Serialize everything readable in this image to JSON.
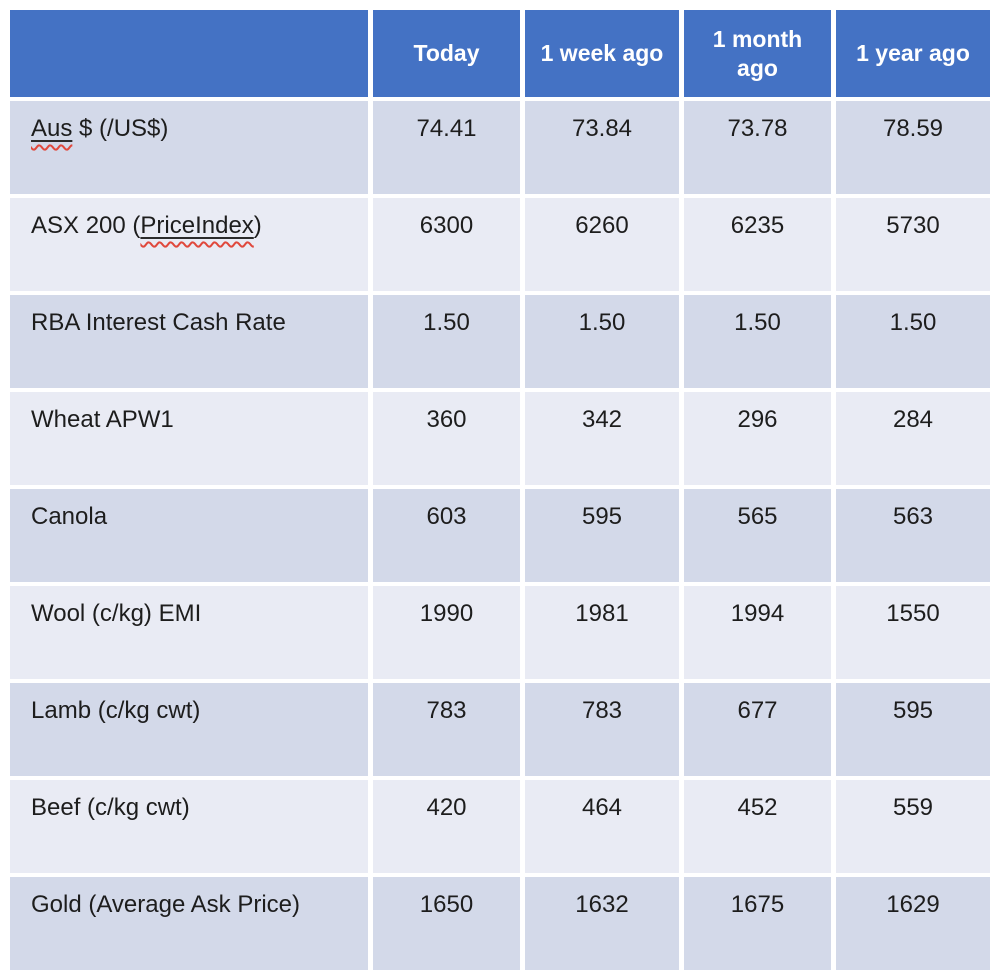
{
  "table": {
    "header": {
      "corner": "",
      "cols": [
        "Today",
        "1 week ago",
        "1 month ago",
        "1 year ago"
      ]
    },
    "rows": [
      {
        "label_parts": [
          {
            "text": "Aus",
            "misspelled": true
          },
          {
            "text": " $ (/US$)"
          }
        ],
        "values": [
          "74.41",
          "73.84",
          "73.78",
          "78.59"
        ]
      },
      {
        "label_parts": [
          {
            "text": "ASX 200 ("
          },
          {
            "text": "PriceIndex",
            "misspelled": true
          },
          {
            "text": ")"
          }
        ],
        "values": [
          "6300",
          "6260",
          "6235",
          "5730"
        ]
      },
      {
        "label_parts": [
          {
            "text": "RBA Interest Cash Rate"
          }
        ],
        "values": [
          "1.50",
          "1.50",
          "1.50",
          "1.50"
        ]
      },
      {
        "label_parts": [
          {
            "text": "Wheat APW1"
          }
        ],
        "values": [
          "360",
          "342",
          "296",
          "284"
        ]
      },
      {
        "label_parts": [
          {
            "text": "Canola"
          }
        ],
        "values": [
          "603",
          "595",
          "565",
          "563"
        ]
      },
      {
        "label_parts": [
          {
            "text": "Wool (c/kg) EMI"
          }
        ],
        "values": [
          "1990",
          "1981",
          "1994",
          "1550"
        ]
      },
      {
        "label_parts": [
          {
            "text": "Lamb (c/kg cwt)"
          }
        ],
        "values": [
          "783",
          "783",
          "677",
          "595"
        ]
      },
      {
        "label_parts": [
          {
            "text": "Beef (c/kg cwt)"
          }
        ],
        "values": [
          "420",
          "464",
          "452",
          "559"
        ]
      },
      {
        "label_parts": [
          {
            "text": "Gold (Average Ask Price)"
          }
        ],
        "values": [
          "1650",
          "1632",
          "1675",
          "1629"
        ]
      }
    ],
    "colors": {
      "header_bg": "#4472c4",
      "band_dark": "#d3d9e9",
      "band_light": "#e9ebf4",
      "text": "#1d1d1d",
      "header_text": "#ffffff",
      "squiggle": "#e0483c",
      "page_bg": "#ffffff"
    }
  },
  "chart_data": {
    "type": "table",
    "title": "Market prices comparison table",
    "columns": [
      "",
      "Today",
      "1 week ago",
      "1 month ago",
      "1 year ago"
    ],
    "rows": [
      [
        "Aus $ (/US$)",
        74.41,
        73.84,
        73.78,
        78.59
      ],
      [
        "ASX 200 (PriceIndex)",
        6300,
        6260,
        6235,
        5730
      ],
      [
        "RBA Interest Cash Rate",
        1.5,
        1.5,
        1.5,
        1.5
      ],
      [
        "Wheat APW1",
        360,
        342,
        296,
        284
      ],
      [
        "Canola",
        603,
        595,
        565,
        563
      ],
      [
        "Wool (c/kg) EMI",
        1990,
        1981,
        1994,
        1550
      ],
      [
        "Lamb (c/kg cwt)",
        783,
        783,
        677,
        595
      ],
      [
        "Beef (c/kg cwt)",
        420,
        464,
        452,
        559
      ],
      [
        "Gold (Average Ask Price)",
        1650,
        1632,
        1675,
        1629
      ]
    ],
    "layout": {
      "banded_rows": true,
      "header_fill": "#4472c4",
      "spellcheck_squiggles_on": [
        "Aus",
        "PriceIndex"
      ]
    }
  }
}
